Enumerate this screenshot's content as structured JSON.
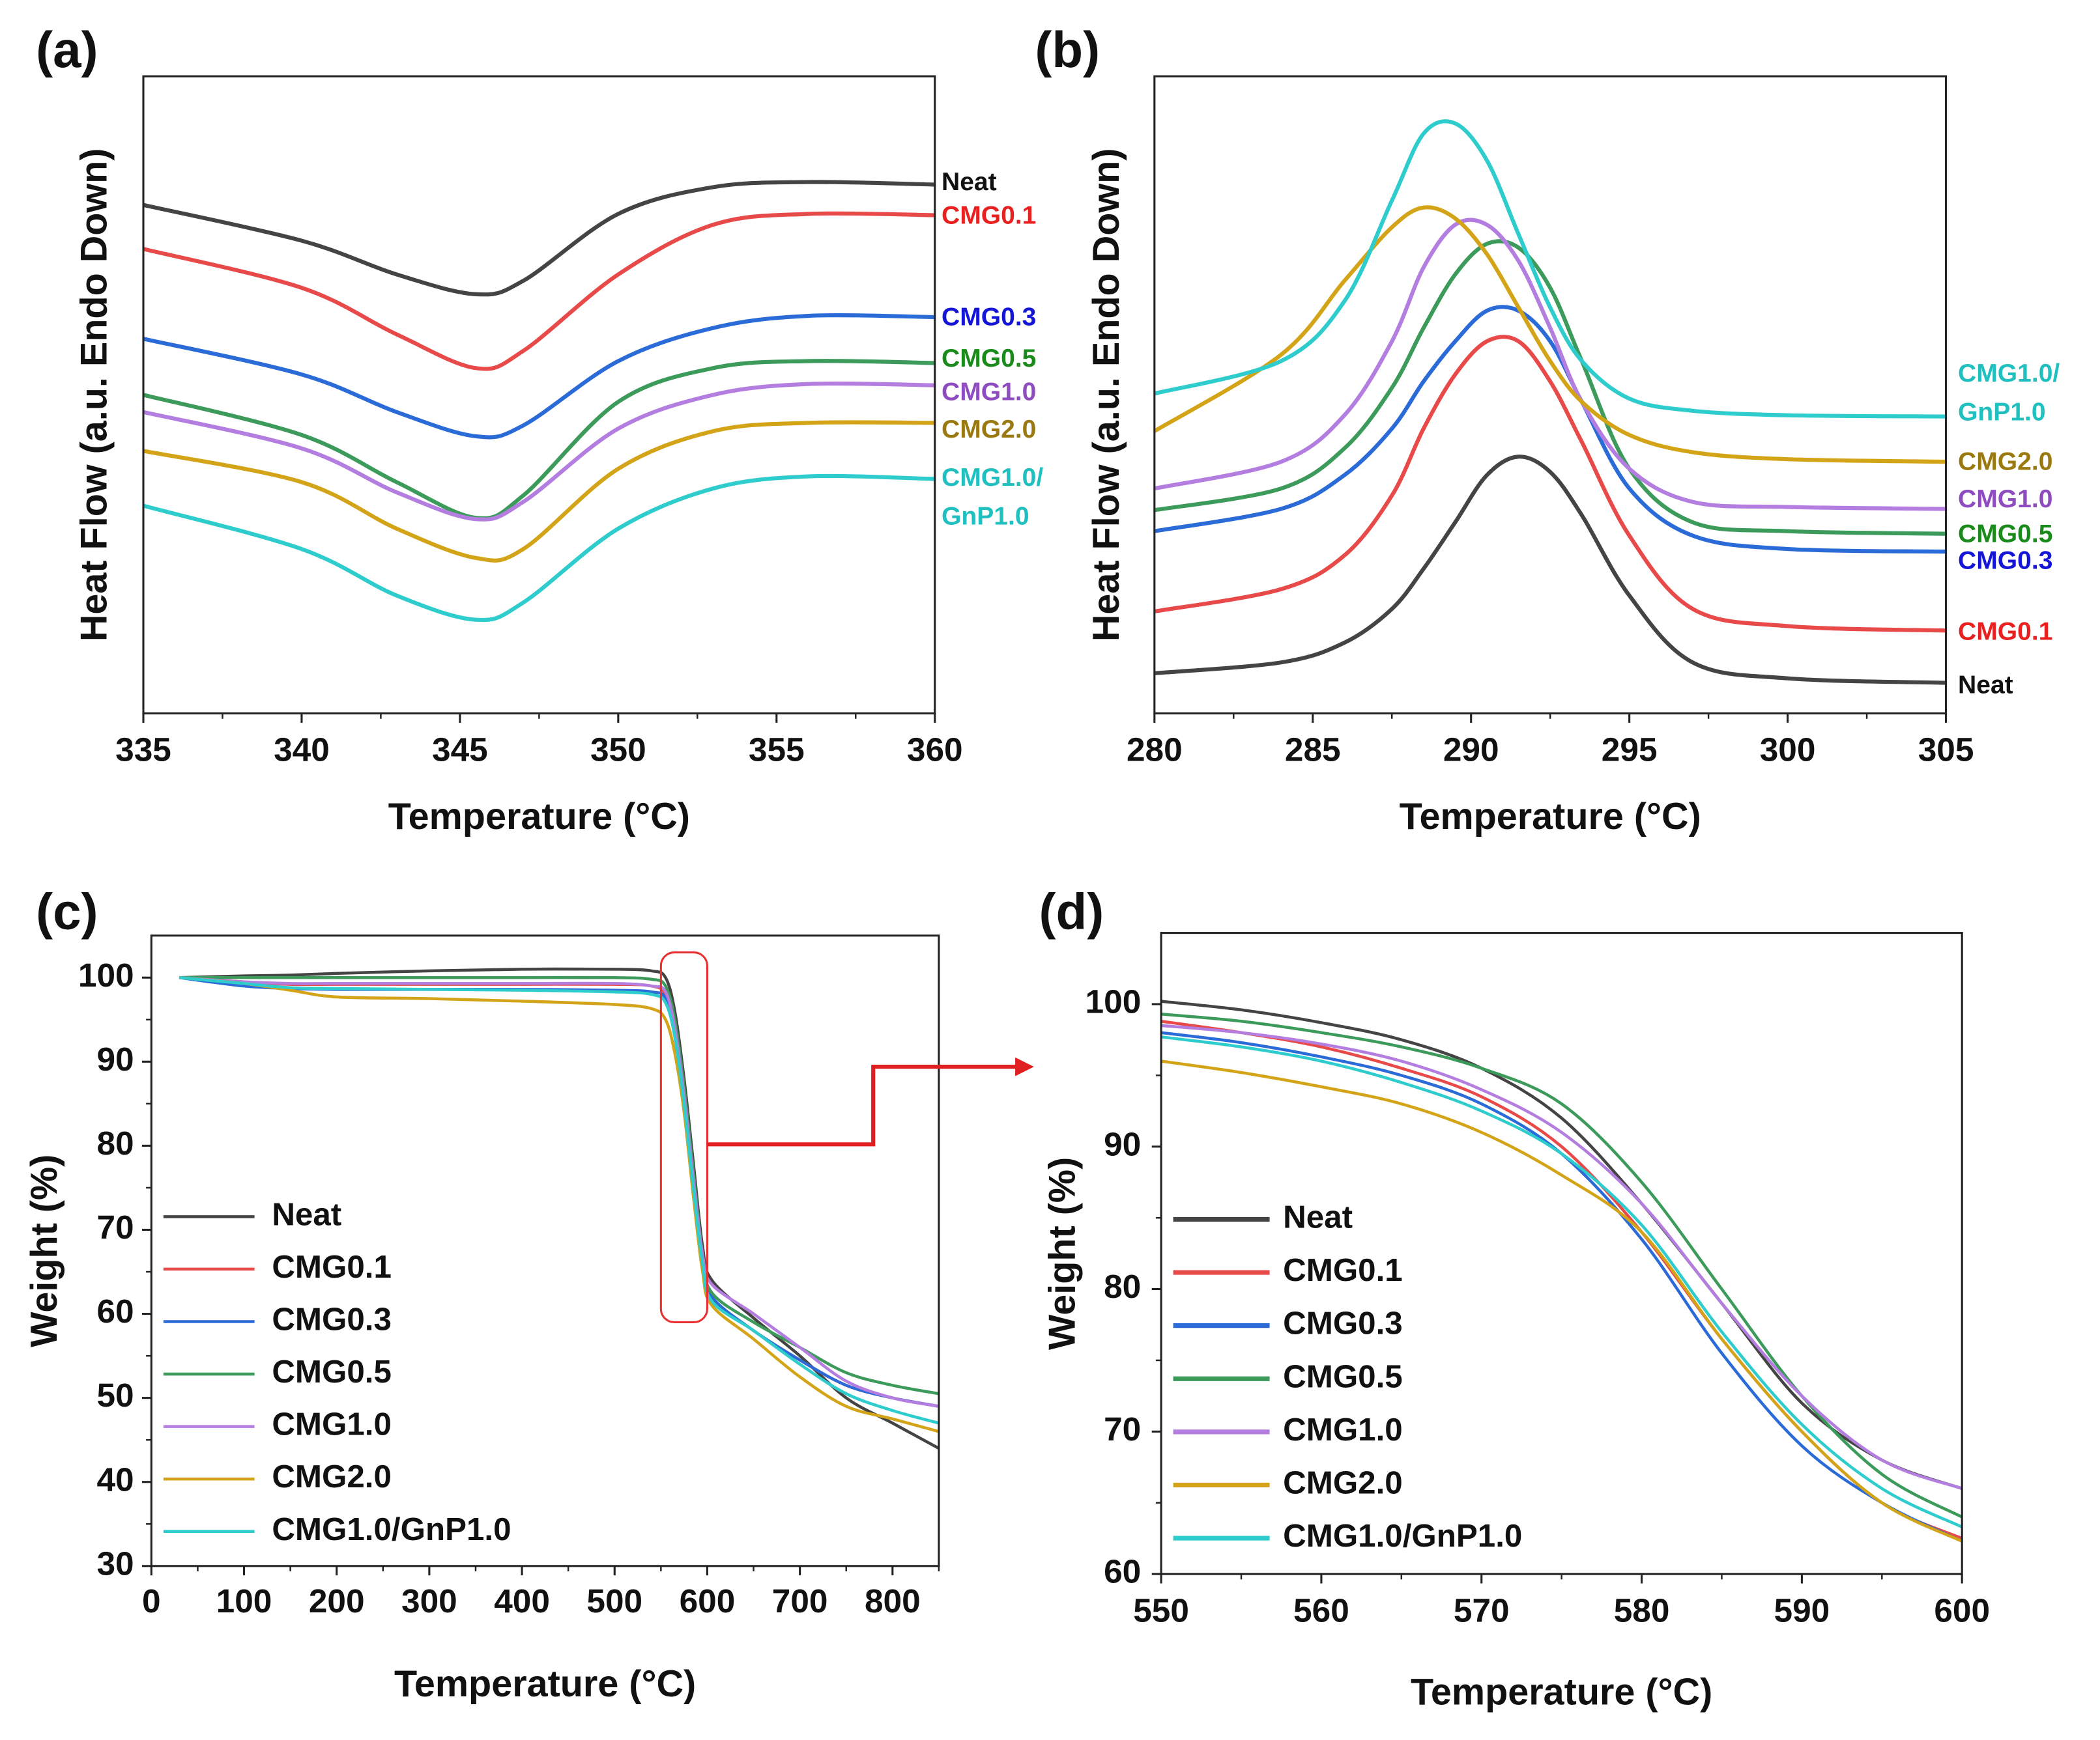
{
  "colors": {
    "Neat": {
      "line": "#444444",
      "label": "#111111"
    },
    "CMG0.1": {
      "line": "#e84a4a",
      "label": "#e82020"
    },
    "CMG0.3": {
      "line": "#2a6bd8",
      "label": "#1515d8"
    },
    "CMG0.5": {
      "line": "#3c9a5a",
      "label": "#1a8a1a"
    },
    "CMG1.0": {
      "line": "#b47ee0",
      "label": "#8e4cc0"
    },
    "CMG2.0": {
      "line": "#d4a418",
      "label": "#9a7a10"
    },
    "CMG1.0/GnP1.0": {
      "line": "#2ecccc",
      "label": "#20c0c0"
    }
  },
  "chart_data": [
    {
      "panel": "(a)",
      "type": "line",
      "xlabel": "Temperature (°C)",
      "ylabel": "Heat Flow (a.u. Endo Down)",
      "xlim": [
        335,
        360
      ],
      "xticks": [
        335,
        340,
        345,
        350,
        355,
        360
      ],
      "ylim": [
        0,
        100
      ],
      "yticks": [],
      "legend": "end-labels-right",
      "x": [
        335,
        340,
        343,
        345.5,
        347,
        350,
        353,
        356,
        360
      ],
      "series": [
        {
          "name": "Neat",
          "values": [
            79.8,
            74.2,
            68.9,
            65.8,
            67.9,
            78.4,
            82.6,
            83.4,
            83.0
          ]
        },
        {
          "name": "CMG0.1",
          "values": [
            72.9,
            66.8,
            59.5,
            54.2,
            56.9,
            68.9,
            76.7,
            78.4,
            78.2
          ]
        },
        {
          "name": "CMG0.3",
          "values": [
            58.8,
            53.2,
            47.3,
            43.5,
            45.2,
            55.3,
            60.5,
            62.4,
            62.2
          ]
        },
        {
          "name": "CMG0.5",
          "values": [
            50.0,
            43.7,
            36.3,
            30.7,
            34.2,
            48.9,
            54.2,
            55.3,
            55.0
          ]
        },
        {
          "name": "CMG1.0",
          "values": [
            47.3,
            41.6,
            34.7,
            30.5,
            33.2,
            44.7,
            50.0,
            51.7,
            51.5
          ]
        },
        {
          "name": "CMG2.0",
          "values": [
            41.2,
            36.3,
            29.0,
            24.4,
            25.8,
            38.4,
            44.3,
            45.6,
            45.6
          ]
        },
        {
          "name": "CMG1.0/GnP1.0",
          "values": [
            32.6,
            25.8,
            18.5,
            14.7,
            17.4,
            29.0,
            35.3,
            37.2,
            36.8
          ]
        }
      ]
    },
    {
      "panel": "(b)",
      "type": "line",
      "xlabel": "Temperature (°C)",
      "ylabel": "Heat Flow (a.u. Endo Down)",
      "xlim": [
        280,
        305
      ],
      "xticks": [
        280,
        285,
        290,
        295,
        300,
        305
      ],
      "ylim": [
        0,
        100
      ],
      "yticks": [],
      "legend": "end-labels-right",
      "x": [
        280,
        284,
        286,
        287.5,
        288.5,
        289.5,
        290.5,
        291.5,
        292.5,
        293.5,
        295,
        297,
        300,
        305
      ],
      "series": [
        {
          "name": "Neat",
          "values": [
            6.3,
            8.0,
            11.1,
            16.4,
            22.7,
            30.0,
            37.4,
            40.3,
            37.9,
            31.1,
            18.5,
            8.0,
            5.5,
            4.8
          ]
        },
        {
          "name": "CMG0.1",
          "values": [
            16.0,
            19.5,
            24.8,
            34.2,
            44.7,
            53.2,
            58.4,
            58.4,
            52.1,
            42.6,
            27.9,
            16.4,
            13.7,
            13.0
          ]
        },
        {
          "name": "CMG0.3",
          "values": [
            28.6,
            32.1,
            37.4,
            44.7,
            52.1,
            58.4,
            63.2,
            63.2,
            58.4,
            48.9,
            35.3,
            27.9,
            25.8,
            25.4
          ]
        },
        {
          "name": "CMG0.5",
          "values": [
            31.9,
            35.3,
            41.6,
            51.1,
            60.5,
            68.9,
            73.7,
            73.1,
            66.8,
            55.3,
            38.4,
            30.0,
            28.6,
            28.2
          ]
        },
        {
          "name": "CMG1.0",
          "values": [
            35.3,
            39.5,
            46.8,
            58.4,
            70.0,
            76.7,
            76.7,
            71.0,
            60.5,
            48.9,
            38.4,
            33.2,
            32.4,
            32.1
          ]
        },
        {
          "name": "CMG2.0",
          "values": [
            44.3,
            56.3,
            67.9,
            76.3,
            79.4,
            77.7,
            72.1,
            63.7,
            55.3,
            48.9,
            43.7,
            41.0,
            39.9,
            39.5
          ]
        },
        {
          "name": "CMG1.0/GnP1.0",
          "values": [
            50.2,
            55.3,
            64.7,
            80.5,
            91.0,
            92.6,
            86.8,
            75.2,
            63.7,
            55.3,
            49.4,
            47.5,
            46.8,
            46.6
          ]
        }
      ]
    },
    {
      "panel": "(c)",
      "type": "line",
      "xlabel": "Temperature (°C)",
      "ylabel": "Weight (%)",
      "xlim": [
        0,
        850
      ],
      "xticks": [
        0,
        100,
        200,
        300,
        400,
        500,
        600,
        700,
        800
      ],
      "ylim": [
        30,
        105
      ],
      "yticks": [
        30,
        40,
        50,
        60,
        70,
        80,
        90,
        100
      ],
      "legend": "left",
      "highlight_region": {
        "x": [
          550,
          600
        ],
        "y": [
          59,
          103
        ]
      },
      "x": [
        30,
        100,
        150,
        200,
        300,
        400,
        500,
        540,
        555,
        565,
        575,
        585,
        595,
        605,
        650,
        700,
        750,
        800,
        850
      ],
      "series": [
        {
          "name": "Neat",
          "values": [
            100,
            100.2,
            100.3,
            100.5,
            100.8,
            101,
            101,
            100.8,
            100,
            96,
            88,
            78,
            68,
            64,
            59.5,
            55,
            50,
            47,
            44
          ]
        },
        {
          "name": "CMG0.1",
          "values": [
            100,
            99.5,
            99.2,
            99.2,
            99.2,
            99.2,
            99.2,
            99,
            98,
            94,
            86,
            76,
            67,
            62,
            58,
            54.5,
            51.5,
            50,
            49
          ]
        },
        {
          "name": "CMG0.3",
          "values": [
            100,
            99,
            98.7,
            98.6,
            98.6,
            98.6,
            98.5,
            98.3,
            97.5,
            93,
            85,
            75,
            66,
            62,
            58,
            54.5,
            51.5,
            50,
            49
          ]
        },
        {
          "name": "CMG0.5",
          "values": [
            100,
            100,
            100,
            100,
            100,
            100,
            100,
            99.8,
            99,
            95,
            87,
            77,
            67,
            62.5,
            59,
            56,
            53,
            51.5,
            50.5
          ]
        },
        {
          "name": "CMG1.0",
          "values": [
            100,
            99.5,
            99.3,
            99.3,
            99.3,
            99.3,
            99.3,
            99,
            98.3,
            94,
            86,
            76,
            67,
            63.5,
            60,
            56,
            52,
            50,
            49
          ]
        },
        {
          "name": "CMG2.0",
          "values": [
            100,
            99.3,
            98.5,
            97.7,
            97.5,
            97.2,
            96.8,
            96.3,
            95,
            91,
            84,
            74,
            65,
            61,
            57,
            52.5,
            49,
            47.5,
            46
          ]
        },
        {
          "name": "CMG1.0/GnP1.0",
          "values": [
            100,
            99.3,
            98.8,
            98.7,
            98.6,
            98.5,
            98.3,
            98,
            97,
            93,
            85,
            75,
            66,
            61.5,
            58,
            54,
            50.5,
            48.5,
            47
          ]
        }
      ]
    },
    {
      "panel": "(d)",
      "type": "line",
      "xlabel": "Temperature (°C)",
      "ylabel": "Weight (%)",
      "xlim": [
        550,
        600
      ],
      "xticks": [
        550,
        560,
        570,
        580,
        590,
        600
      ],
      "ylim": [
        60,
        105
      ],
      "yticks": [
        60,
        70,
        80,
        90,
        100
      ],
      "legend": "left",
      "x": [
        550,
        555,
        560,
        565,
        570,
        575,
        580,
        585,
        590,
        595,
        600
      ],
      "series": [
        {
          "name": "Neat",
          "values": [
            100.2,
            99.6,
            98.7,
            97.5,
            95.5,
            92,
            86,
            79,
            72,
            68,
            66
          ]
        },
        {
          "name": "CMG0.1",
          "values": [
            98.8,
            98,
            97,
            95.5,
            93.5,
            90,
            84,
            76.5,
            70,
            65,
            62.5
          ]
        },
        {
          "name": "CMG0.3",
          "values": [
            98,
            97.3,
            96.3,
            95,
            93,
            89.5,
            83.5,
            75.5,
            69,
            65,
            62.3
          ]
        },
        {
          "name": "CMG0.5",
          "values": [
            99.3,
            98.8,
            98,
            97,
            95.5,
            93,
            87.5,
            80,
            72.5,
            67,
            64
          ]
        },
        {
          "name": "CMG1.0",
          "values": [
            98.5,
            98,
            97.2,
            96,
            94,
            91,
            86,
            79,
            72.5,
            68,
            66
          ]
        },
        {
          "name": "CMG2.0",
          "values": [
            96,
            95.2,
            94.2,
            93,
            91,
            88,
            84,
            76.5,
            70,
            65,
            62.3
          ]
        },
        {
          "name": "CMG1.0/GnP1.0",
          "values": [
            97.7,
            97,
            96,
            94.5,
            92.5,
            89.5,
            84.5,
            77,
            70.5,
            66,
            63.3
          ]
        }
      ]
    }
  ]
}
